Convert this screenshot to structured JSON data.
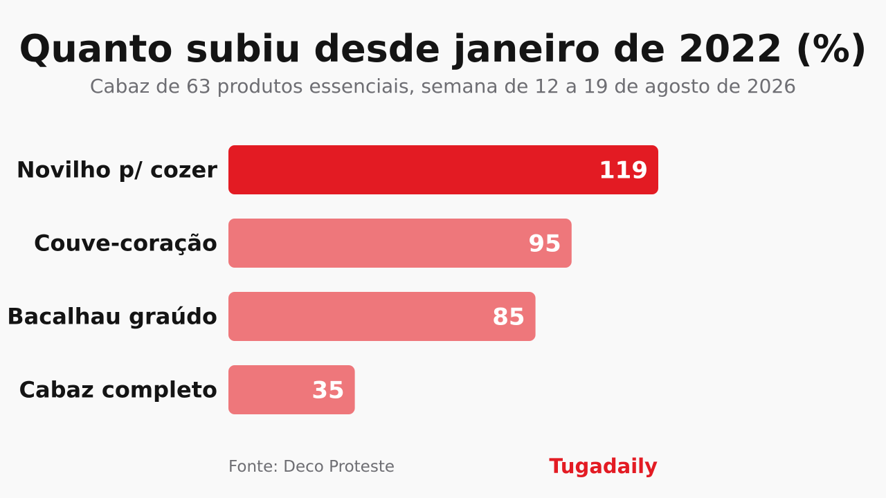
{
  "header": {
    "title": "Quanto subiu desde janeiro de 2022 (%)",
    "subtitle": "Cabaz de 63 produtos essenciais, semana de 12 a 19 de agosto de 2026"
  },
  "footer": {
    "source": "Fonte: Deco Proteste",
    "brand": "Tugadaily"
  },
  "colors": {
    "highlight": "#e31b23",
    "bar": "#ee777b",
    "category_text": "#141414",
    "value_text": "#ffffff",
    "brand": "#e31b23"
  },
  "chart_data": {
    "type": "bar",
    "orientation": "horizontal",
    "title": "Quanto subiu desde janeiro de 2022 (%)",
    "subtitle": "Cabaz de 63 produtos essenciais, semana de 12 a 19 de agosto de 2026",
    "categories": [
      "Novilho p/ cozer",
      "Couve-coração",
      "Bacalhau graúdo",
      "Cabaz completo"
    ],
    "values": [
      119,
      95,
      85,
      35
    ],
    "value_labels": [
      "119",
      "95",
      "85",
      "35"
    ],
    "highlighted_category": "Novilho p/ cozer",
    "xlabel": "",
    "ylabel": "",
    "xlim": [
      0,
      119
    ],
    "grid": false,
    "legend": "none"
  }
}
